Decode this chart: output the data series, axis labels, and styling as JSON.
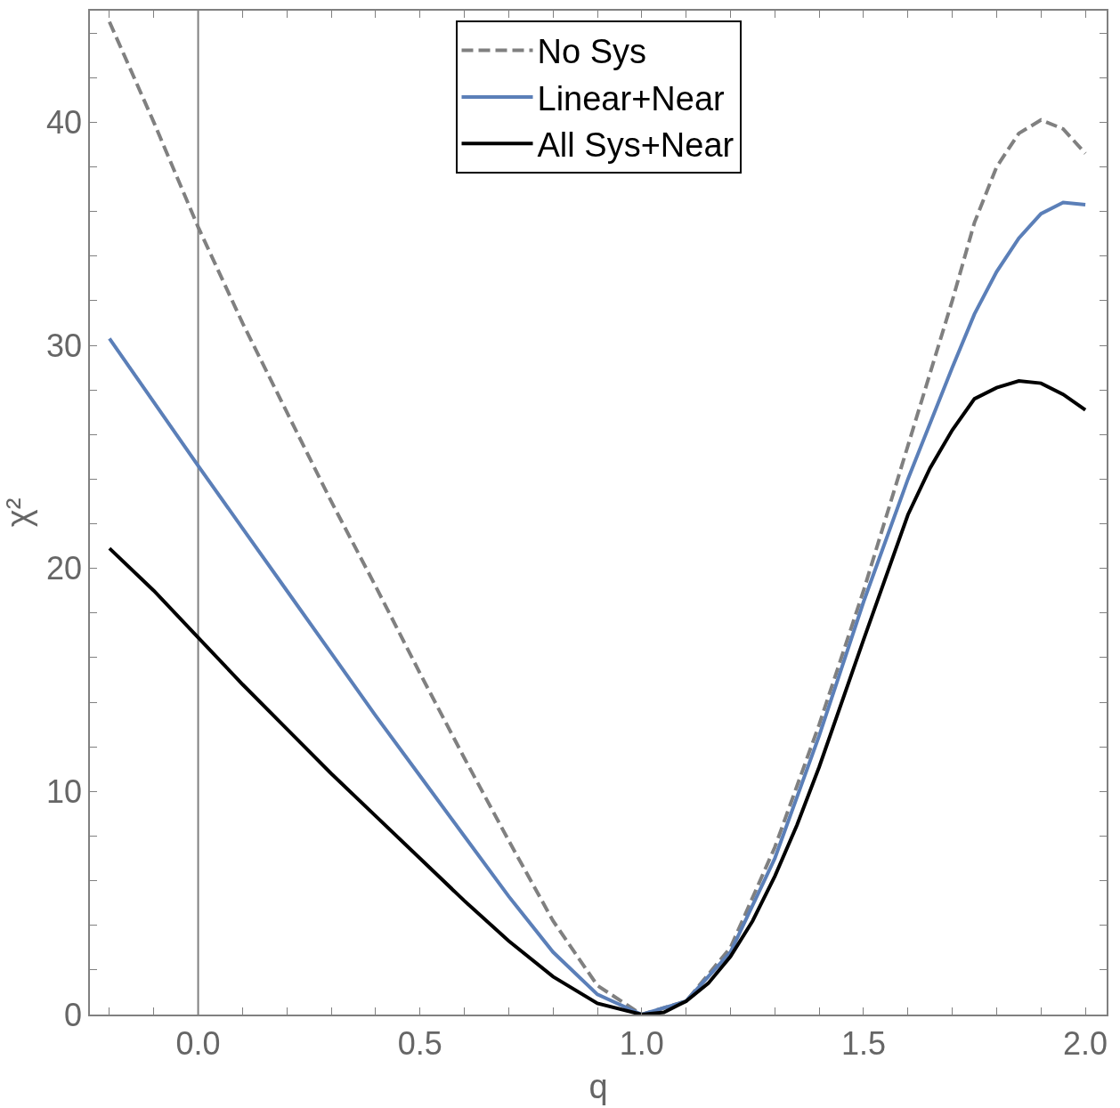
{
  "chart_data": {
    "type": "line",
    "xlabel": "q",
    "ylabel": "χ²",
    "xlim": [
      -0.244,
      2.048
    ],
    "ylim": [
      0,
      45
    ],
    "xticks": [
      {
        "value": -0.2,
        "label": null
      },
      {
        "value": -0.1,
        "label": null
      },
      {
        "value": 0,
        "label": "0.0"
      },
      {
        "value": 0.1,
        "label": null
      },
      {
        "value": 0.2,
        "label": null
      },
      {
        "value": 0.3,
        "label": null
      },
      {
        "value": 0.4,
        "label": null
      },
      {
        "value": 0.5,
        "label": "0.5"
      },
      {
        "value": 0.6,
        "label": null
      },
      {
        "value": 0.7,
        "label": null
      },
      {
        "value": 0.8,
        "label": null
      },
      {
        "value": 0.9,
        "label": null
      },
      {
        "value": 1,
        "label": "1.0"
      },
      {
        "value": 1.1,
        "label": null
      },
      {
        "value": 1.2,
        "label": null
      },
      {
        "value": 1.3,
        "label": null
      },
      {
        "value": 1.4,
        "label": null
      },
      {
        "value": 1.5,
        "label": "1.5"
      },
      {
        "value": 1.6,
        "label": null
      },
      {
        "value": 1.7,
        "label": null
      },
      {
        "value": 1.8,
        "label": null
      },
      {
        "value": 1.9,
        "label": null
      },
      {
        "value": 2,
        "label": "2.0"
      }
    ],
    "yticks": [
      0,
      {
        "value": 2,
        "label": null
      },
      {
        "value": 4,
        "label": null
      },
      {
        "value": 6,
        "label": null
      },
      {
        "value": 8,
        "label": null
      },
      10,
      {
        "value": 12,
        "label": null
      },
      {
        "value": 14,
        "label": null
      },
      {
        "value": 16,
        "label": null
      },
      {
        "value": 18,
        "label": null
      },
      20,
      {
        "value": 22,
        "label": null
      },
      {
        "value": 24,
        "label": null
      },
      {
        "value": 26,
        "label": null
      },
      {
        "value": 28,
        "label": null
      },
      30,
      {
        "value": 32,
        "label": null
      },
      {
        "value": 34,
        "label": null
      },
      {
        "value": 36,
        "label": null
      },
      {
        "value": 38,
        "label": null
      },
      40,
      {
        "value": 42,
        "label": null
      },
      {
        "value": 44,
        "label": null
      }
    ],
    "grid": false,
    "legend": "top",
    "marker": "none",
    "ref_lines": [
      {
        "axis": "x",
        "value": 0,
        "color": "#808080"
      }
    ],
    "series": [
      {
        "name": "No Sys",
        "color": "#808080",
        "line_style": "dashed",
        "x": [
          -0.2,
          -0.1,
          0,
          0.1,
          0.2,
          0.3,
          0.4,
          0.5,
          0.6,
          0.7,
          0.8,
          0.9,
          1.0,
          1.1,
          1.2,
          1.3,
          1.4,
          1.5,
          1.6,
          1.7,
          1.75,
          1.8,
          1.85,
          1.9,
          1.95,
          2.0
        ],
        "values": [
          44.5,
          40,
          35.3,
          31,
          27,
          23,
          19.2,
          15.3,
          11.5,
          7.8,
          4.2,
          1.3,
          0,
          0.6,
          3,
          7.5,
          13,
          19,
          25.5,
          32,
          35.5,
          38,
          39.5,
          40.1,
          39.7,
          38.6
        ]
      },
      {
        "name": "Linear+Near",
        "color": "#5b7fb8",
        "line_style": "solid",
        "x": [
          -0.2,
          0,
          0.1,
          0.2,
          0.3,
          0.4,
          0.5,
          0.6,
          0.7,
          0.8,
          0.9,
          1.0,
          1.1,
          1.2,
          1.3,
          1.4,
          1.5,
          1.6,
          1.7,
          1.75,
          1.8,
          1.85,
          1.9,
          1.95,
          2.0
        ],
        "values": [
          30.3,
          24.6,
          21.8,
          19,
          16.2,
          13.4,
          10.7,
          8,
          5.3,
          2.8,
          0.9,
          0,
          0.6,
          2.8,
          7,
          12.5,
          18.5,
          24,
          29,
          31.4,
          33.3,
          34.8,
          35.9,
          36.4,
          36.3
        ]
      },
      {
        "name": "All Sys+Near",
        "color": "#000000",
        "line_style": "solid",
        "x": [
          -0.2,
          -0.1,
          0,
          0.1,
          0.2,
          0.3,
          0.4,
          0.5,
          0.6,
          0.7,
          0.8,
          0.9,
          1.0,
          1.05,
          1.1,
          1.15,
          1.2,
          1.25,
          1.3,
          1.35,
          1.4,
          1.5,
          1.6,
          1.65,
          1.7,
          1.75,
          1.8,
          1.85,
          1.9,
          1.95,
          2.0
        ],
        "values": [
          20.9,
          19,
          16.9,
          14.8,
          12.8,
          10.8,
          8.9,
          7,
          5.1,
          3.3,
          1.7,
          0.5,
          0,
          0.1,
          0.6,
          1.4,
          2.6,
          4.2,
          6.2,
          8.5,
          11.1,
          16.8,
          22.4,
          24.5,
          26.2,
          27.6,
          28.1,
          28.4,
          28.3,
          27.8,
          27.1
        ]
      }
    ]
  }
}
